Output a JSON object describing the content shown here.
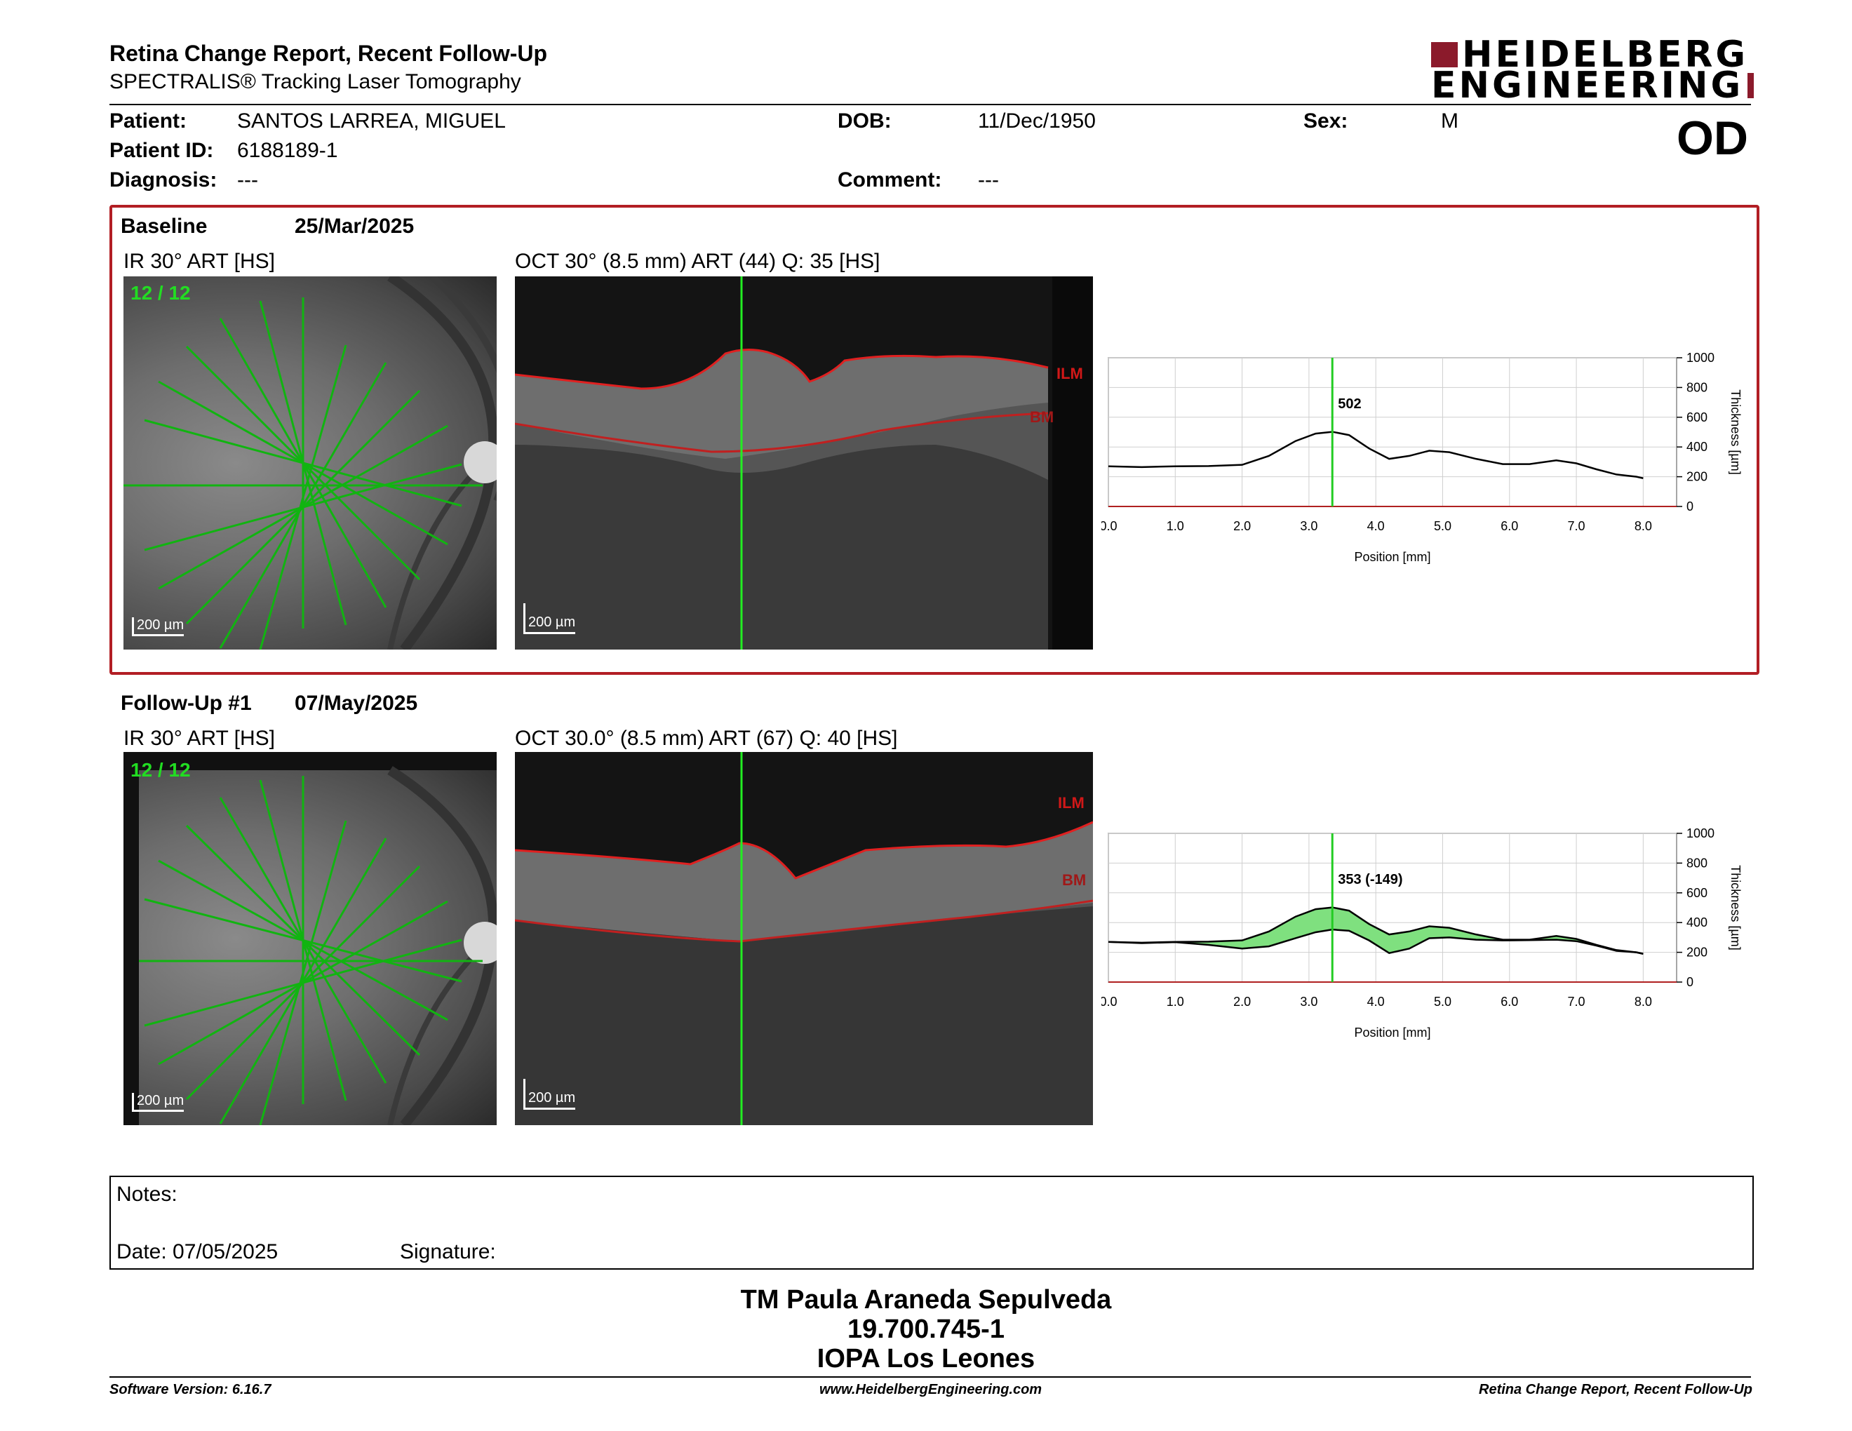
{
  "header": {
    "title": "Retina Change Report, Recent Follow-Up",
    "subtitle": "SPECTRALIS® Tracking Laser Tomography",
    "logo_line1": "HEIDELBERG",
    "logo_line2": "ENGINEERING",
    "eye": "OD"
  },
  "patient": {
    "patient_label": "Patient:",
    "patient_value": "SANTOS LARREA, MIGUEL",
    "id_label": "Patient ID:",
    "id_value": "6188189-1",
    "diagnosis_label": "Diagnosis:",
    "diagnosis_value": "---",
    "dob_label": "DOB:",
    "dob_value": "11/Dec/1950",
    "comment_label": "Comment:",
    "comment_value": "---",
    "sex_label": "Sex:",
    "sex_value": "M"
  },
  "baseline": {
    "label": "Baseline",
    "date": "25/Mar/2025",
    "ir_caption": "IR 30° ART [HS]",
    "ir_counter": "12 / 12",
    "oct_caption": "OCT 30° (8.5 mm) ART (44) Q: 35 [HS]",
    "scale": "200 µm",
    "ilm": "ILM",
    "bm": "BM"
  },
  "followup": {
    "label": "Follow-Up #1",
    "date": "07/May/2025",
    "ir_caption": "IR 30° ART [HS]",
    "ir_counter": "12 / 12",
    "oct_caption": "OCT 30.0° (8.5 mm) ART (67) Q: 40 [HS]",
    "scale": "200 µm",
    "ilm": "ILM",
    "bm": "BM"
  },
  "chart_data": [
    {
      "type": "line",
      "xlabel": "Position [mm]",
      "ylabel": "Thickness [µm]",
      "xlim": [
        0,
        8.5
      ],
      "ylim": [
        0,
        1000
      ],
      "x_ticks": [
        "0.0",
        "1.0",
        "2.0",
        "3.0",
        "4.0",
        "5.0",
        "6.0",
        "7.0",
        "8.0"
      ],
      "y_ticks": [
        "0",
        "200",
        "400",
        "600",
        "800",
        "1000"
      ],
      "marker_x": 3.35,
      "marker_label": "502",
      "series": [
        {
          "values": [
            [
              0,
              270
            ],
            [
              0.5,
              265
            ],
            [
              1.0,
              270
            ],
            [
              1.5,
              272
            ],
            [
              2.0,
              280
            ],
            [
              2.4,
              340
            ],
            [
              2.8,
              440
            ],
            [
              3.1,
              490
            ],
            [
              3.35,
              502
            ],
            [
              3.6,
              480
            ],
            [
              3.9,
              390
            ],
            [
              4.2,
              320
            ],
            [
              4.5,
              340
            ],
            [
              4.8,
              375
            ],
            [
              5.1,
              365
            ],
            [
              5.5,
              320
            ],
            [
              5.9,
              285
            ],
            [
              6.3,
              285
            ],
            [
              6.7,
              310
            ],
            [
              7.0,
              290
            ],
            [
              7.3,
              250
            ],
            [
              7.6,
              215
            ],
            [
              7.9,
              200
            ],
            [
              8.0,
              190
            ]
          ],
          "color": "#000000"
        }
      ]
    },
    {
      "type": "line",
      "xlabel": "Position [mm]",
      "ylabel": "Thickness [µm]",
      "xlim": [
        0,
        8.5
      ],
      "ylim": [
        0,
        1000
      ],
      "x_ticks": [
        "0.0",
        "1.0",
        "2.0",
        "3.0",
        "4.0",
        "5.0",
        "6.0",
        "7.0",
        "8.0"
      ],
      "y_ticks": [
        "0",
        "200",
        "400",
        "600",
        "800",
        "1000"
      ],
      "marker_x": 3.35,
      "marker_label": "353 (-149)",
      "series": [
        {
          "values": [
            [
              0,
              270
            ],
            [
              0.5,
              265
            ],
            [
              1.0,
              270
            ],
            [
              1.5,
              272
            ],
            [
              2.0,
              280
            ],
            [
              2.4,
              340
            ],
            [
              2.8,
              440
            ],
            [
              3.1,
              490
            ],
            [
              3.35,
              502
            ],
            [
              3.6,
              480
            ],
            [
              3.9,
              390
            ],
            [
              4.2,
              320
            ],
            [
              4.5,
              340
            ],
            [
              4.8,
              375
            ],
            [
              5.1,
              365
            ],
            [
              5.5,
              320
            ],
            [
              5.9,
              285
            ],
            [
              6.3,
              285
            ],
            [
              6.7,
              310
            ],
            [
              7.0,
              290
            ],
            [
              7.3,
              250
            ],
            [
              7.6,
              215
            ],
            [
              7.9,
              200
            ],
            [
              8.0,
              190
            ]
          ],
          "color": "#000000",
          "fill": "#7fe07f"
        },
        {
          "values": [
            [
              0,
              270
            ],
            [
              0.5,
              262
            ],
            [
              1.0,
              268
            ],
            [
              1.5,
              250
            ],
            [
              2.0,
              225
            ],
            [
              2.4,
              240
            ],
            [
              2.8,
              295
            ],
            [
              3.1,
              335
            ],
            [
              3.35,
              353
            ],
            [
              3.6,
              345
            ],
            [
              3.9,
              280
            ],
            [
              4.2,
              195
            ],
            [
              4.5,
              225
            ],
            [
              4.8,
              295
            ],
            [
              5.1,
              300
            ],
            [
              5.5,
              285
            ],
            [
              5.9,
              280
            ],
            [
              6.3,
              282
            ],
            [
              6.7,
              285
            ],
            [
              7.0,
              275
            ],
            [
              7.3,
              245
            ],
            [
              7.6,
              210
            ],
            [
              7.9,
              200
            ],
            [
              8.0,
              190
            ]
          ],
          "color": "#000000"
        }
      ]
    }
  ],
  "notes": {
    "notes_label": "Notes:",
    "date_label": "Date: 07/05/2025",
    "signature_label": "Signature:"
  },
  "signature": {
    "name": "TM Paula Araneda Sepulveda",
    "rut": "19.700.745-1",
    "clinic": "IOPA Los Leones"
  },
  "footer": {
    "software": "Software Version: 6.16.7",
    "website": "www.HeidelbergEngineering.com",
    "report": "Retina Change Report, Recent Follow-Up"
  }
}
